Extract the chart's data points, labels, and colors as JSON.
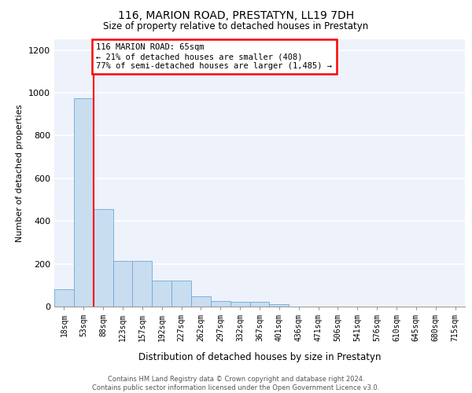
{
  "title": "116, MARION ROAD, PRESTATYN, LL19 7DH",
  "subtitle": "Size of property relative to detached houses in Prestatyn",
  "xlabel": "Distribution of detached houses by size in Prestatyn",
  "ylabel": "Number of detached properties",
  "bar_color": "#c9ddf0",
  "bar_edge_color": "#6aaad4",
  "bin_labels": [
    "18sqm",
    "53sqm",
    "88sqm",
    "123sqm",
    "157sqm",
    "192sqm",
    "227sqm",
    "262sqm",
    "297sqm",
    "332sqm",
    "367sqm",
    "401sqm",
    "436sqm",
    "471sqm",
    "506sqm",
    "541sqm",
    "576sqm",
    "610sqm",
    "645sqm",
    "680sqm",
    "715sqm"
  ],
  "bar_values": [
    80,
    975,
    455,
    215,
    215,
    120,
    120,
    47,
    25,
    22,
    22,
    12,
    0,
    0,
    0,
    0,
    0,
    0,
    0,
    0,
    0
  ],
  "ylim": [
    0,
    1250
  ],
  "yticks": [
    0,
    200,
    400,
    600,
    800,
    1000,
    1200
  ],
  "annotation_text": "116 MARION ROAD: 65sqm\n← 21% of detached houses are smaller (408)\n77% of semi-detached houses are larger (1,485) →",
  "annotation_box_color": "white",
  "annotation_box_edge_color": "red",
  "vline_color": "red",
  "vline_x": 1.5,
  "footer_text": "Contains HM Land Registry data © Crown copyright and database right 2024.\nContains public sector information licensed under the Open Government Licence v3.0.",
  "background_color": "#eef2fb",
  "grid_color": "#ffffff"
}
